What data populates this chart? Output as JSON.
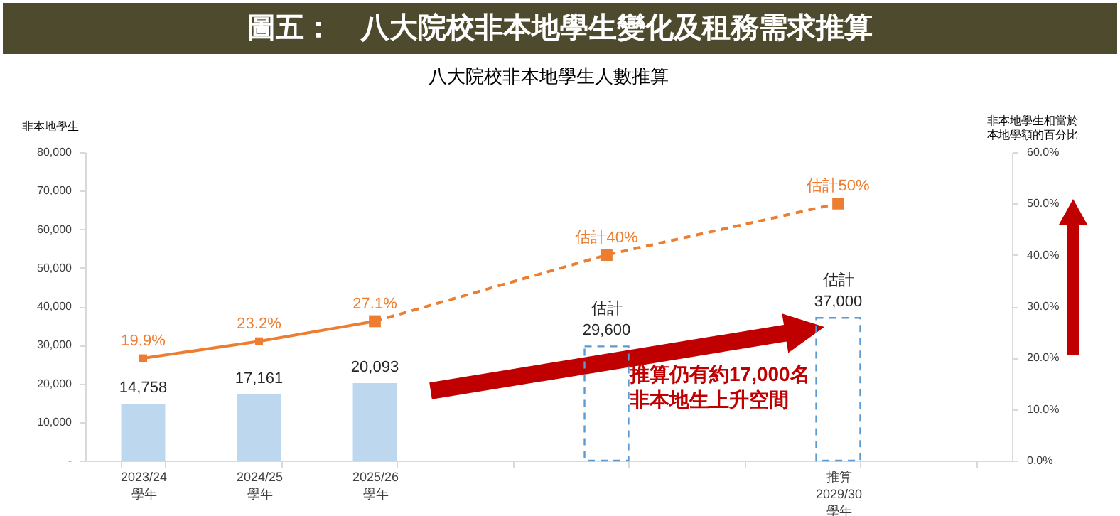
{
  "chart_data": {
    "type": "bar",
    "title": "圖五：　八大院校非本地學生變化及租務需求推算",
    "subtitle": "八大院校非本地學生人數推算",
    "ylabel": "非本地學生",
    "y2label": "非本地學生相當於本地學額的百分比",
    "categories": [
      "2023/24\n學年",
      "2024/25\n學年",
      "2025/26\n學年",
      null,
      null,
      null,
      "推算\n2029/30\n學年",
      null
    ],
    "series": [
      {
        "color": "#bdd7ee",
        "values": [
          14758,
          17161,
          20093,
          null,
          null,
          null,
          null,
          null
        ],
        "value_labels": [
          "14,758",
          "17,161",
          "20,093",
          null,
          null,
          null,
          null,
          null
        ]
      },
      {
        "color": "#5b9bd5",
        "line_style": "dashed",
        "values": [
          null,
          null,
          null,
          null,
          29600,
          null,
          37000,
          null
        ],
        "value_labels": [
          null,
          null,
          null,
          null,
          "估計\n29,600",
          null,
          "估計\n37,000",
          null
        ]
      },
      {
        "type": "line",
        "axis": "y2",
        "color": "#ed7d31",
        "marker": "square",
        "line_style": "dashed",
        "values": [
          null,
          null,
          27.1,
          null,
          40,
          null,
          50,
          null
        ],
        "value_labels": [
          null,
          null,
          null,
          null,
          "估計40%",
          null,
          "估計50%",
          null
        ]
      },
      {
        "type": "line",
        "axis": "y2",
        "color": "#ed7d31",
        "marker": "square",
        "line_style": "solid",
        "values": [
          19.9,
          23.2,
          27.1,
          null,
          null,
          null,
          null,
          null
        ],
        "value_labels": [
          "19.9%",
          "23.2%",
          "27.1%",
          null,
          null,
          null,
          null,
          null
        ]
      }
    ],
    "ylim": [
      0,
      80000
    ],
    "yticks": [
      {
        "value": 0,
        "label": "-"
      },
      {
        "value": 10000,
        "label": "10,000"
      },
      {
        "value": 20000,
        "label": "20,000"
      },
      {
        "value": 30000,
        "label": "30,000"
      },
      {
        "value": 40000,
        "label": "40,000"
      },
      {
        "value": 50000,
        "label": "50,000"
      },
      {
        "value": 60000,
        "label": "60,000"
      },
      {
        "value": 70000,
        "label": "70,000"
      },
      {
        "value": 80000,
        "label": "80,000"
      }
    ],
    "y2lim": [
      0,
      60
    ],
    "y2ticks": [
      {
        "value": 0,
        "label": "0.0%"
      },
      {
        "value": 10,
        "label": "10.0%"
      },
      {
        "value": 20,
        "label": "20.0%"
      },
      {
        "value": 30,
        "label": "30.0%"
      },
      {
        "value": 40,
        "label": "40.0%"
      },
      {
        "value": 50,
        "label": "50.0%"
      },
      {
        "value": 60,
        "label": "60.0%"
      }
    ],
    "annotations": [
      "推算仍有約17,000名非本地生上升空間"
    ]
  }
}
